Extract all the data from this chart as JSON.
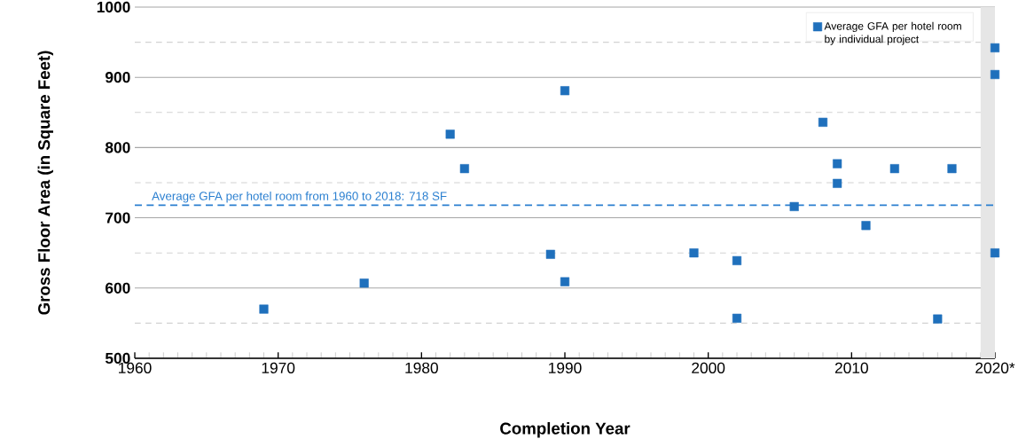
{
  "chart_data": {
    "type": "scatter",
    "xlabel": "Completion Year",
    "ylabel": "Gross Floor Area (in Square Feet)",
    "series": [
      {
        "name": "Average GFA per hotel room by individual project",
        "color": "#1f70bc",
        "x": [
          1969,
          1976,
          1982,
          1983,
          1989,
          1990,
          1990,
          1999,
          2002,
          2002,
          2006,
          2008,
          2009,
          2009,
          2011,
          2013,
          2016,
          2017,
          2020,
          2020,
          2020
        ],
        "values": [
          570,
          607,
          819,
          770,
          648,
          881,
          609,
          650,
          639,
          557,
          716,
          836,
          777,
          749,
          689,
          770,
          556,
          770,
          942,
          904,
          650
        ]
      }
    ],
    "xlim": [
      1960,
      2020
    ],
    "ylim": [
      500,
      1000
    ],
    "xticks": [
      1960,
      1970,
      1980,
      1990,
      2000,
      2010,
      {
        "value": 2020,
        "label": "2020*"
      }
    ],
    "yticks": [
      500,
      600,
      700,
      800,
      900,
      1000
    ],
    "grid": "y",
    "legend": "top right",
    "marker": "square",
    "ref_lines": [
      {
        "axis": "y",
        "value": 718,
        "label": "Average GFA per hotel room from 1960 to 2018: 718 SF",
        "color": "#2a7fd0",
        "line_style": "dashed"
      }
    ],
    "bands": [
      {
        "axis": "x",
        "from": 2019,
        "to": 2020,
        "color": "#e6e6e6"
      }
    ]
  }
}
